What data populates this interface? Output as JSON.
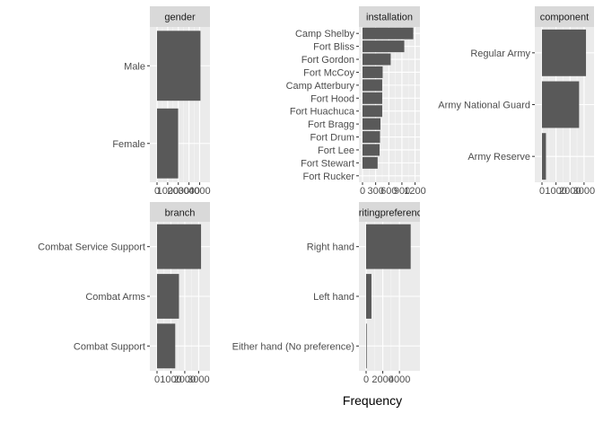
{
  "figure": {
    "xlabel": "Frequency"
  },
  "colors": {
    "bar": "#595959",
    "panel_bg": "#ebebeb",
    "strip_bg": "#d9d9d9",
    "grid_major": "#ffffff",
    "grid_minor": "#f5f5f5"
  },
  "chart_data": [
    {
      "type": "bar",
      "orientation": "horizontal",
      "title": "gender",
      "categories": [
        "Male",
        "Female"
      ],
      "values": [
        4082,
        1986
      ],
      "xlim": [
        0,
        4300
      ],
      "xticks": [
        0,
        1000,
        2000,
        3000,
        4000
      ],
      "xtick_labels": [
        "0",
        "1000",
        "2000",
        "3000",
        "4000"
      ]
    },
    {
      "type": "bar",
      "orientation": "horizontal",
      "title": "installation",
      "categories": [
        "Camp Shelby",
        "Fort Bliss",
        "Fort Gordon",
        "Fort McCoy",
        "Camp Atterbury",
        "Fort Hood",
        "Fort Huachuca",
        "Fort Bragg",
        "Fort Drum",
        "Fort Lee",
        "Fort Stewart",
        "Fort Rucker"
      ],
      "values": [
        1160,
        954,
        644,
        460,
        450,
        450,
        450,
        410,
        400,
        390,
        345,
        0
      ],
      "xlim": [
        0,
        1230
      ],
      "xticks": [
        0,
        300,
        600,
        900,
        1200
      ],
      "xtick_labels": [
        "0",
        "300",
        "600",
        "900",
        "1200"
      ]
    },
    {
      "type": "bar",
      "orientation": "horizontal",
      "title": "component",
      "categories": [
        "Regular Army",
        "Army National Guard",
        "Army Reserve"
      ],
      "values": [
        3138,
        2646,
        284
      ],
      "xlim": [
        0,
        3200
      ],
      "xticks": [
        0,
        1000,
        2000,
        3000
      ],
      "xtick_labels": [
        "0",
        "1000",
        "2000",
        "3000"
      ]
    },
    {
      "type": "bar",
      "orientation": "horizontal",
      "title": "branch",
      "categories": [
        "Combat Service Support",
        "Combat Arms",
        "Combat Support"
      ],
      "values": [
        3174,
        1582,
        1312
      ],
      "xlim": [
        0,
        3300
      ],
      "xticks": [
        0,
        1000,
        2000,
        3000
      ],
      "xtick_labels": [
        "0",
        "1000",
        "2000",
        "3000"
      ]
    },
    {
      "type": "bar",
      "orientation": "horizontal",
      "title": "writingpreference",
      "categories": [
        "Right hand",
        "Left hand",
        "Either hand (No preference)"
      ],
      "values": [
        5350,
        640,
        78
      ],
      "xlim": [
        0,
        5600
      ],
      "xticks": [
        0,
        2000,
        4000
      ],
      "xtick_labels": [
        "0",
        "2000",
        "4000"
      ]
    }
  ]
}
